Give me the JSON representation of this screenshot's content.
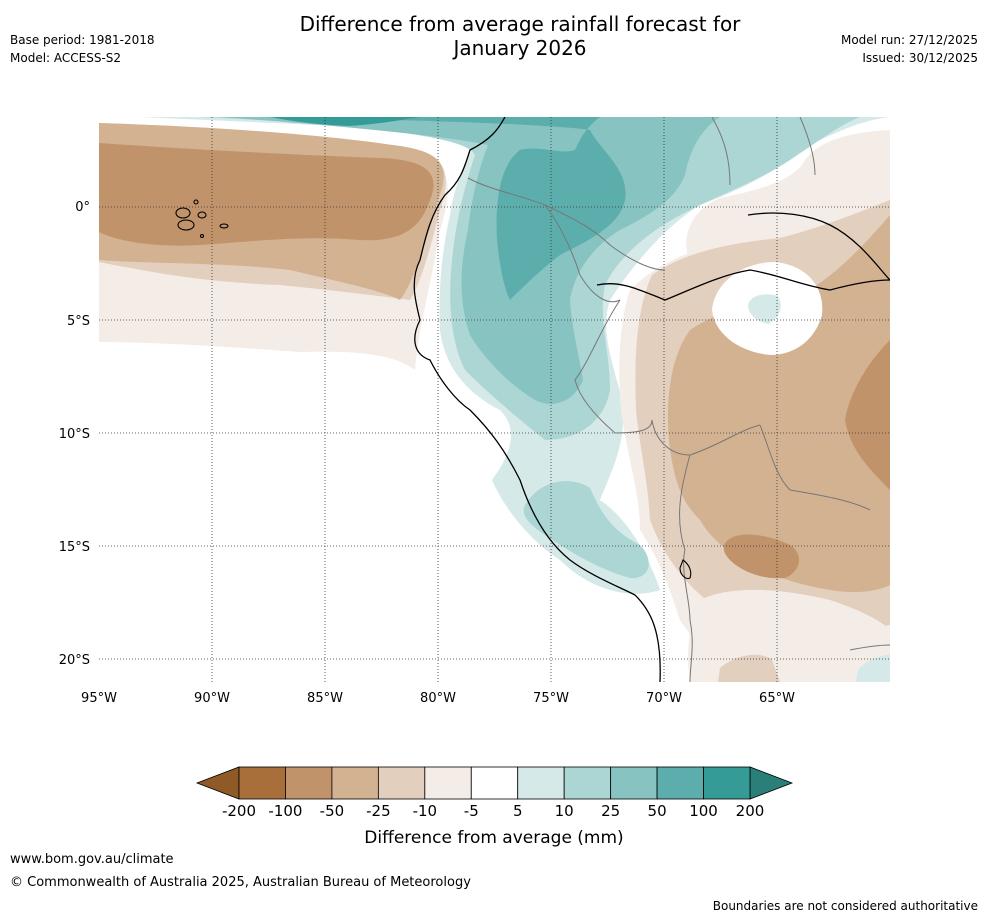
{
  "header": {
    "title_line1": "Difference from average rainfall forecast for",
    "title_line2": "January 2026",
    "base_period": "Base period: 1981-2018",
    "model": "Model: ACCESS-S2",
    "model_run": "Model run: 27/12/2025",
    "issued": "Issued: 30/12/2025"
  },
  "map": {
    "lon_labels": [
      "95°W",
      "90°W",
      "85°W",
      "80°W",
      "75°W",
      "70°W",
      "65°W"
    ],
    "lat_labels": [
      "0°",
      "5°S",
      "10°S",
      "15°S",
      "20°S"
    ]
  },
  "legend": {
    "title": "Difference from average (mm)",
    "tick_labels": [
      "-200",
      "-100",
      "-50",
      "-25",
      "-10",
      "-5",
      "5",
      "10",
      "25",
      "50",
      "100",
      "200"
    ],
    "colors": [
      "#a86f3a",
      "#c0936a",
      "#d3b291",
      "#e3cfbe",
      "#f4ece7",
      "#ffffff",
      "#d5e9e8",
      "#acd6d4",
      "#86c3c1",
      "#5baeab",
      "#349b96",
      "#1f7f7b"
    ],
    "arrow_low_color": "#8f5a26",
    "arrow_high_color": "#2a7f79"
  },
  "footer": {
    "url": "www.bom.gov.au/climate",
    "copyright": "© Commonwealth of Australia 2025, Australian Bureau of Meteorology",
    "note": "Boundaries are not considered authoritative"
  }
}
